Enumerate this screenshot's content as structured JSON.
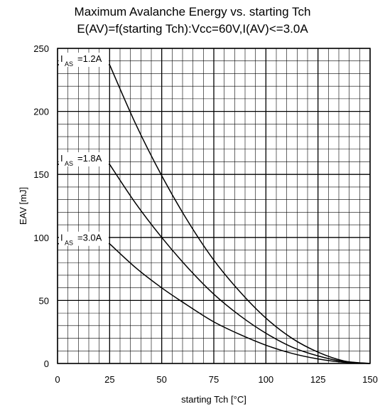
{
  "chart_data": {
    "type": "line",
    "title": "Maximum Avalanche Energy vs. starting Tch",
    "subtitle": "E(AV)=f(starting Tch):Vcc=60V,I(AV)<=3.0A",
    "xlabel": "starting Tch [°C]",
    "ylabel": "EAV [mJ]",
    "xlim": [
      0,
      150
    ],
    "ylim": [
      0,
      250
    ],
    "x_ticks": [
      0,
      25,
      50,
      75,
      100,
      125,
      150
    ],
    "y_ticks": [
      0,
      50,
      100,
      150,
      200,
      250
    ],
    "grid": true,
    "series": [
      {
        "label_main": "I",
        "label_sub": "AS",
        "label_value": "=1.2A",
        "x": [
          0,
          25,
          37.5,
          50,
          62.5,
          75,
          87.5,
          100,
          112.5,
          125,
          137.5,
          150
        ],
        "values": [
          237,
          237,
          190,
          149,
          113,
          82,
          57,
          36,
          20,
          9,
          2,
          0
        ]
      },
      {
        "label_main": "I",
        "label_sub": "AS",
        "label_value": "=1.8A",
        "x": [
          0,
          25,
          37.5,
          50,
          62.5,
          75,
          87.5,
          100,
          112.5,
          125,
          137.5,
          150
        ],
        "values": [
          158,
          158,
          127,
          100,
          76,
          55,
          38,
          24,
          13,
          6,
          1.5,
          0
        ]
      },
      {
        "label_main": "I",
        "label_sub": "AS",
        "label_value": "=3.0A",
        "x": [
          0,
          25,
          37.5,
          50,
          62.5,
          75,
          87.5,
          100,
          112.5,
          125,
          137.5,
          150
        ],
        "values": [
          95,
          95,
          76,
          60,
          46,
          33,
          23,
          14.5,
          8,
          3.6,
          0.9,
          0
        ]
      }
    ]
  }
}
